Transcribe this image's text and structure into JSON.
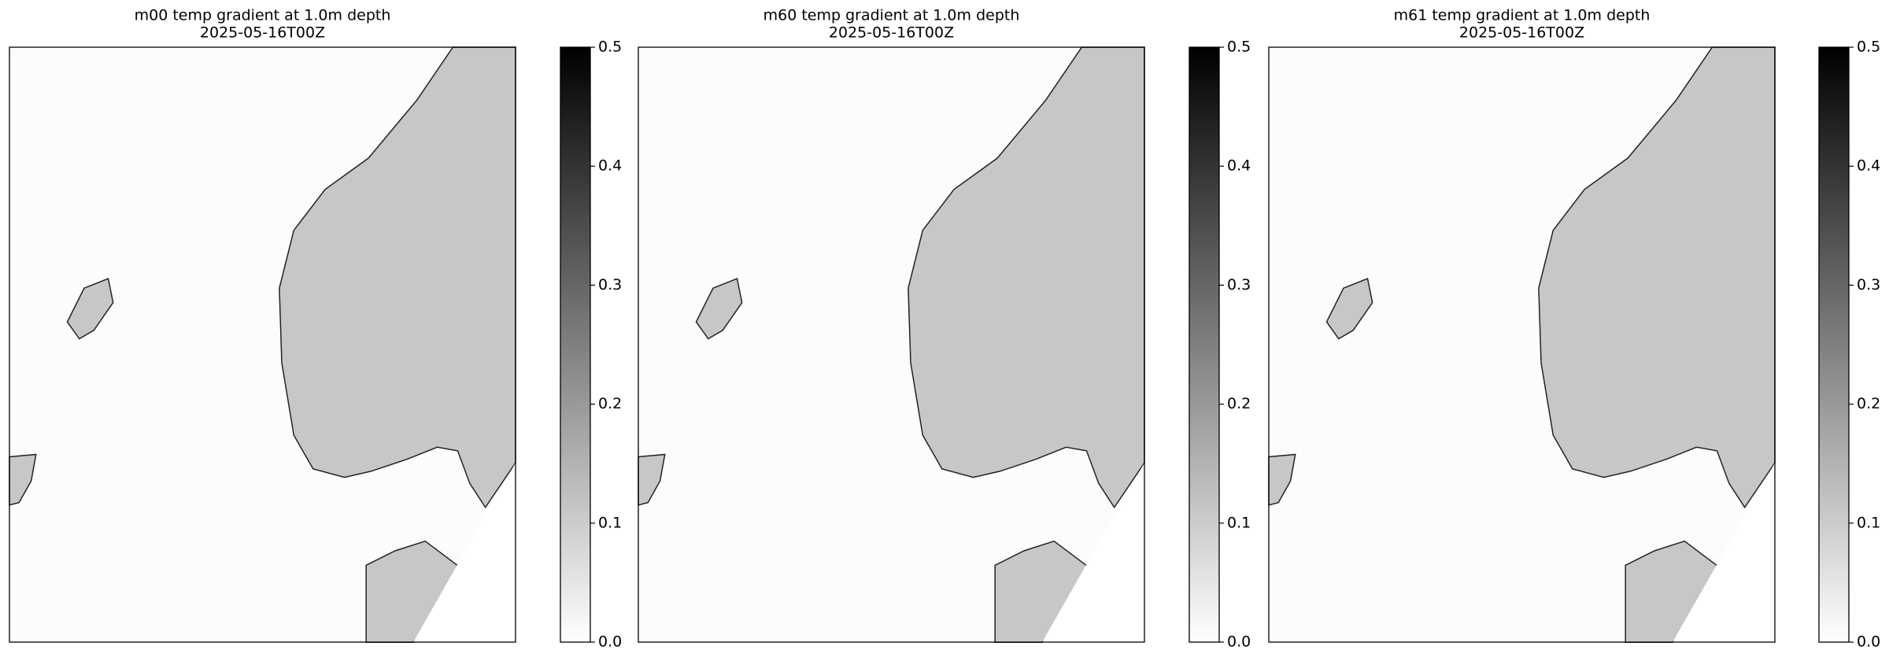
{
  "panels": [
    {
      "title": "m00 temp gradient at 1.0m depth",
      "subtitle": "2025-05-16T00Z",
      "colorbar": {
        "lim": [
          0,
          0.5
        ],
        "ticks": [
          {
            "value": 0,
            "label": "0.0"
          },
          0.1,
          0.2,
          0.3,
          0.4,
          0.5
        ]
      }
    },
    {
      "title": "m60 temp gradient at 1.0m depth",
      "subtitle": "2025-05-16T00Z",
      "colorbar": {
        "lim": [
          0,
          0.5
        ],
        "ticks": [
          {
            "value": 0,
            "label": "0.0"
          },
          0.1,
          0.2,
          0.3,
          0.4,
          0.5
        ]
      }
    },
    {
      "title": "m61 temp gradient at 1.0m depth",
      "subtitle": "2025-05-16T00Z",
      "colorbar": {
        "lim": [
          0,
          0.5
        ],
        "ticks": [
          {
            "value": 0,
            "label": "0.0"
          },
          0.1,
          0.2,
          0.3,
          0.4,
          0.5
        ]
      }
    }
  ]
}
